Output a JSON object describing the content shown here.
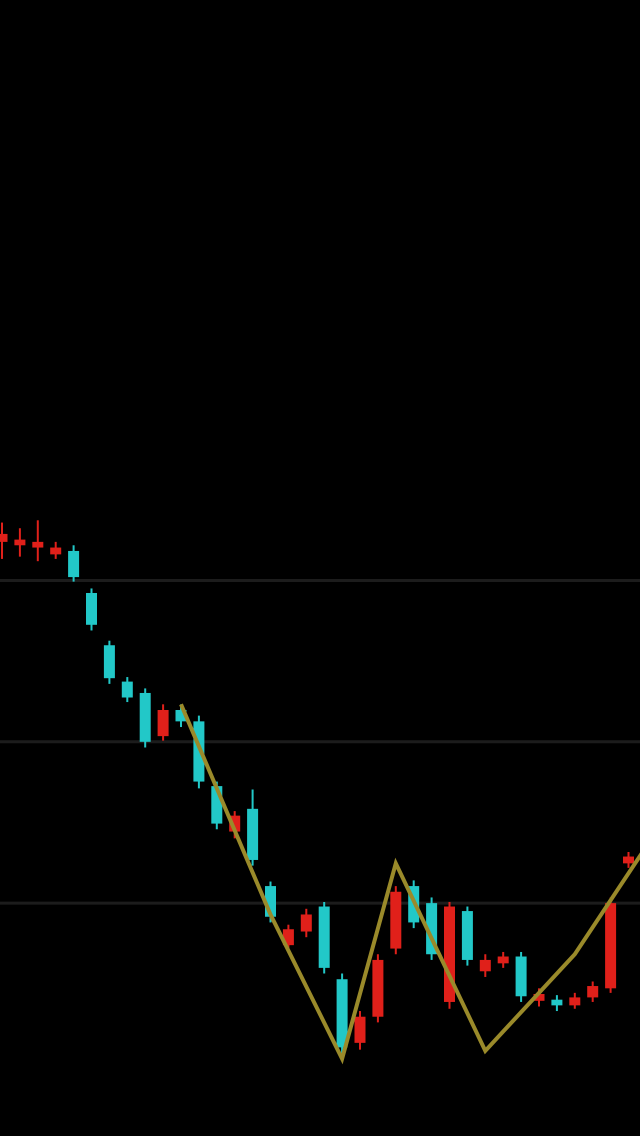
{
  "colors": {
    "background": "#000000",
    "up": "#e0201a",
    "down": "#22c8c8",
    "trend_line": "#9a8a2a",
    "grid": "#1c1c1c"
  },
  "chart_data": {
    "type": "candlestick",
    "title": "",
    "xlabel": "",
    "ylabel": "",
    "grid": true,
    "legend": "none",
    "ylim": [
      0,
      100
    ],
    "gridlines_y": [
      48.9,
      34.7,
      20.5
    ],
    "candles": [
      {
        "x": 1,
        "open": 53.0,
        "close": 52.3,
        "high": 54.0,
        "low": 50.8,
        "dir": "up"
      },
      {
        "x": 2,
        "open": 52.5,
        "close": 52.0,
        "high": 53.5,
        "low": 51.0,
        "dir": "up"
      },
      {
        "x": 3,
        "open": 52.3,
        "close": 51.8,
        "high": 54.2,
        "low": 50.6,
        "dir": "up"
      },
      {
        "x": 4,
        "open": 51.8,
        "close": 51.2,
        "high": 52.3,
        "low": 50.8,
        "dir": "up"
      },
      {
        "x": 5,
        "open": 51.5,
        "close": 49.2,
        "high": 52.0,
        "low": 48.8,
        "dir": "down"
      },
      {
        "x": 6,
        "open": 47.8,
        "close": 45.0,
        "high": 48.2,
        "low": 44.5,
        "dir": "down"
      },
      {
        "x": 7,
        "open": 43.2,
        "close": 40.3,
        "high": 43.6,
        "low": 39.8,
        "dir": "down"
      },
      {
        "x": 8,
        "open": 40.0,
        "close": 38.6,
        "high": 40.4,
        "low": 38.2,
        "dir": "down"
      },
      {
        "x": 9,
        "open": 39.0,
        "close": 34.7,
        "high": 39.4,
        "low": 34.2,
        "dir": "down"
      },
      {
        "x": 10,
        "open": 35.2,
        "close": 37.5,
        "high": 38.0,
        "low": 34.8,
        "dir": "up"
      },
      {
        "x": 11,
        "open": 37.5,
        "close": 36.5,
        "high": 38.0,
        "low": 36.0,
        "dir": "down"
      },
      {
        "x": 12,
        "open": 36.5,
        "close": 31.2,
        "high": 37.0,
        "low": 30.6,
        "dir": "down"
      },
      {
        "x": 13,
        "open": 30.8,
        "close": 27.5,
        "high": 31.2,
        "low": 27.0,
        "dir": "down"
      },
      {
        "x": 14,
        "open": 28.2,
        "close": 26.8,
        "high": 28.6,
        "low": 26.2,
        "dir": "up"
      },
      {
        "x": 15,
        "open": 28.8,
        "close": 24.3,
        "high": 30.5,
        "low": 23.8,
        "dir": "down"
      },
      {
        "x": 16,
        "open": 22.0,
        "close": 19.3,
        "high": 22.4,
        "low": 18.8,
        "dir": "down"
      },
      {
        "x": 17,
        "open": 16.8,
        "close": 18.2,
        "high": 18.6,
        "low": 16.3,
        "dir": "up"
      },
      {
        "x": 18,
        "open": 18.0,
        "close": 19.5,
        "high": 20.0,
        "low": 17.5,
        "dir": "up"
      },
      {
        "x": 19,
        "open": 20.2,
        "close": 14.8,
        "high": 20.6,
        "low": 14.3,
        "dir": "down"
      },
      {
        "x": 20,
        "open": 13.8,
        "close": 7.8,
        "high": 14.3,
        "low": 7.0,
        "dir": "down"
      },
      {
        "x": 21,
        "open": 8.2,
        "close": 10.5,
        "high": 11.0,
        "low": 7.6,
        "dir": "up"
      },
      {
        "x": 22,
        "open": 10.5,
        "close": 15.5,
        "high": 16.0,
        "low": 10.0,
        "dir": "up"
      },
      {
        "x": 23,
        "open": 16.5,
        "close": 21.5,
        "high": 22.0,
        "low": 16.0,
        "dir": "up"
      },
      {
        "x": 24,
        "open": 22.0,
        "close": 18.8,
        "high": 22.5,
        "low": 18.3,
        "dir": "down"
      },
      {
        "x": 25,
        "open": 20.5,
        "close": 16.0,
        "high": 21.0,
        "low": 15.5,
        "dir": "down"
      },
      {
        "x": 26,
        "open": 20.2,
        "close": 11.8,
        "high": 20.6,
        "low": 11.2,
        "dir": "up"
      },
      {
        "x": 27,
        "open": 19.8,
        "close": 15.5,
        "high": 20.2,
        "low": 15.0,
        "dir": "down"
      },
      {
        "x": 28,
        "open": 14.5,
        "close": 15.5,
        "high": 16.0,
        "low": 14.0,
        "dir": "up"
      },
      {
        "x": 29,
        "open": 15.8,
        "close": 15.2,
        "high": 16.2,
        "low": 14.8,
        "dir": "up"
      },
      {
        "x": 30,
        "open": 15.8,
        "close": 12.3,
        "high": 16.2,
        "low": 11.8,
        "dir": "down"
      },
      {
        "x": 31,
        "open": 12.5,
        "close": 11.9,
        "high": 13.0,
        "low": 11.4,
        "dir": "up"
      },
      {
        "x": 32,
        "open": 12.0,
        "close": 11.5,
        "high": 12.4,
        "low": 11.0,
        "dir": "down"
      },
      {
        "x": 33,
        "open": 11.5,
        "close": 12.2,
        "high": 12.6,
        "low": 11.2,
        "dir": "up"
      },
      {
        "x": 34,
        "open": 12.2,
        "close": 13.2,
        "high": 13.6,
        "low": 11.8,
        "dir": "up"
      },
      {
        "x": 35,
        "open": 13.0,
        "close": 20.5,
        "high": 21.0,
        "low": 12.6,
        "dir": "up"
      },
      {
        "x": 36,
        "open": 24.0,
        "close": 24.6,
        "high": 25.0,
        "low": 23.6,
        "dir": "up"
      }
    ],
    "trend_line": [
      {
        "x": 11,
        "y": 38.0
      },
      {
        "x": 16,
        "y": 19.5
      },
      {
        "x": 20,
        "y": 6.8
      },
      {
        "x": 23,
        "y": 24.0
      },
      {
        "x": 28,
        "y": 7.5
      },
      {
        "x": 33,
        "y": 16.0
      },
      {
        "x": 37,
        "y": 25.5
      }
    ]
  }
}
